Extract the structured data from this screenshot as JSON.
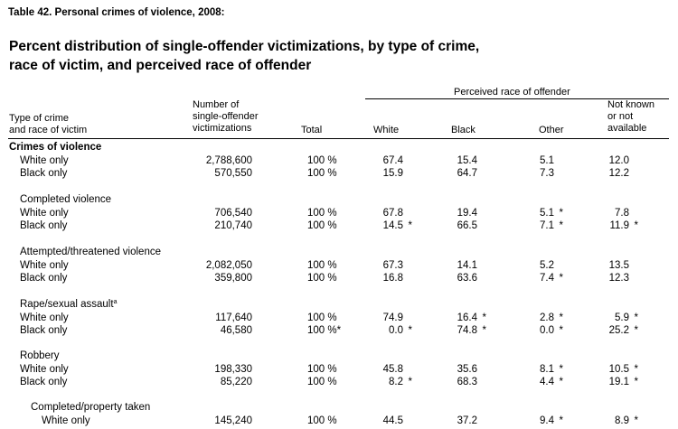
{
  "table_label": "Table 42. Personal crimes of violence, 2008:",
  "title_line1": "Percent distribution of single-offender victimizations, by type of crime,",
  "title_line2": "race of victim, and perceived race of offender",
  "headers": {
    "perceived": "Perceived race of offender",
    "type_line1": "Type of crime",
    "type_line2": "and race of victim",
    "num_line1": "Number of",
    "num_line2": "single-offender",
    "num_line3": "victimizations",
    "total": "Total",
    "white": "White",
    "black": "Black",
    "other": "Other",
    "nk_line1": "Not known",
    "nk_line2": "or not",
    "nk_line3": "available"
  },
  "sections": {
    "s1": "Crimes of violence",
    "s2": "Completed violence",
    "s3": "Attempted/threatened violence",
    "s4": "Rape/sexual assault",
    "s4_sup": "a",
    "s5": "Robbery",
    "s6": "Completed/property taken"
  },
  "rows": {
    "r1": {
      "label": "White only",
      "num": "2,788,600",
      "total": "100 %",
      "white": "67.4",
      "white_s": "",
      "black": "15.4",
      "black_s": "",
      "other": "5.1",
      "other_s": "",
      "nk": "12.0",
      "nk_s": ""
    },
    "r2": {
      "label": "Black only",
      "num": "570,550",
      "total": "100 %",
      "white": "15.9",
      "white_s": "",
      "black": "64.7",
      "black_s": "",
      "other": "7.3",
      "other_s": "",
      "nk": "12.2",
      "nk_s": ""
    },
    "r3": {
      "label": "White only",
      "num": "706,540",
      "total": "100 %",
      "white": "67.8",
      "white_s": "",
      "black": "19.4",
      "black_s": "",
      "other": "5.1",
      "other_s": "*",
      "nk": "7.8",
      "nk_s": ""
    },
    "r4": {
      "label": "Black only",
      "num": "210,740",
      "total": "100 %",
      "white": "14.5",
      "white_s": "*",
      "black": "66.5",
      "black_s": "",
      "other": "7.1",
      "other_s": "*",
      "nk": "11.9",
      "nk_s": "*"
    },
    "r5": {
      "label": "White only",
      "num": "2,082,050",
      "total": "100 %",
      "white": "67.3",
      "white_s": "",
      "black": "14.1",
      "black_s": "",
      "other": "5.2",
      "other_s": "",
      "nk": "13.5",
      "nk_s": ""
    },
    "r6": {
      "label": "Black only",
      "num": "359,800",
      "total": "100 %",
      "white": "16.8",
      "white_s": "",
      "black": "63.6",
      "black_s": "",
      "other": "7.4",
      "other_s": "*",
      "nk": "12.3",
      "nk_s": ""
    },
    "r7": {
      "label": "White only",
      "num": "117,640",
      "total": "100 %",
      "white": "74.9",
      "white_s": "",
      "black": "16.4",
      "black_s": "*",
      "other": "2.8",
      "other_s": "*",
      "nk": "5.9",
      "nk_s": "*"
    },
    "r8": {
      "label": "Black only",
      "num": "46,580",
      "total": "100 %*",
      "white": "0.0",
      "white_s": "*",
      "black": "74.8",
      "black_s": "*",
      "other": "0.0",
      "other_s": "*",
      "nk": "25.2",
      "nk_s": "*"
    },
    "r9": {
      "label": "White only",
      "num": "198,330",
      "total": "100 %",
      "white": "45.8",
      "white_s": "",
      "black": "35.6",
      "black_s": "",
      "other": "8.1",
      "other_s": "*",
      "nk": "10.5",
      "nk_s": "*"
    },
    "r10": {
      "label": "Black only",
      "num": "85,220",
      "total": "100 %",
      "white": "8.2",
      "white_s": "*",
      "black": "68.3",
      "black_s": "",
      "other": "4.4",
      "other_s": "*",
      "nk": "19.1",
      "nk_s": "*"
    },
    "r11": {
      "label": "White only",
      "num": "145,240",
      "total": "100 %",
      "white": "44.5",
      "white_s": "",
      "black": "37.2",
      "black_s": "",
      "other": "9.4",
      "other_s": "*",
      "nk": "8.9",
      "nk_s": "*"
    }
  }
}
